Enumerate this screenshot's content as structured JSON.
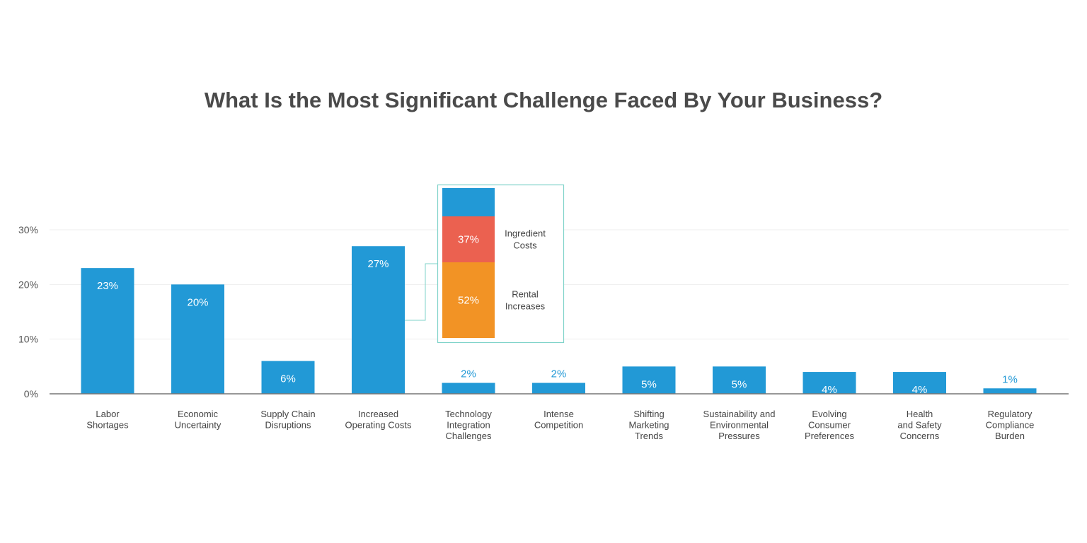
{
  "chart_data": {
    "type": "bar",
    "title": "What Is the Most Significant Challenge Faced By Your Business?",
    "categories": [
      [
        "Labor",
        "Shortages"
      ],
      [
        "Economic",
        "Uncertainty"
      ],
      [
        "Supply Chain",
        "Disruptions"
      ],
      [
        "Increased",
        "Operating Costs"
      ],
      [
        "Technology",
        "Integration",
        "Challenges"
      ],
      [
        "Intense",
        "Competition"
      ],
      [
        "Shifting",
        "Marketing",
        "Trends"
      ],
      [
        "Sustainability and",
        "Environmental",
        "Pressures"
      ],
      [
        "Evolving",
        "Consumer",
        "Preferences"
      ],
      [
        "Health",
        "and Safety",
        "Concerns"
      ],
      [
        "Regulatory",
        "Compliance",
        "Burden"
      ]
    ],
    "values": [
      23,
      20,
      6,
      27,
      2,
      2,
      5,
      5,
      4,
      4,
      1
    ],
    "value_labels": [
      "23%",
      "20%",
      "6%",
      "27%",
      "2%",
      "2%",
      "5%",
      "5%",
      "4%",
      "4%",
      "1%"
    ],
    "ylim": [
      0,
      30
    ],
    "yticks": [
      "0%",
      "10%",
      "20%",
      "30%"
    ],
    "ytick_values": [
      0,
      10,
      20,
      30
    ],
    "grid": true,
    "bar_color": "#2299d6",
    "breakdown": {
      "parent_category": "Increased Operating Costs",
      "segments": [
        {
          "name": "Rental Increases",
          "value": 52,
          "label": "52%",
          "color": "#f29325"
        },
        {
          "name": "Ingredient Costs",
          "value": 37,
          "label": "37%",
          "color": "#eb6150"
        },
        {
          "name": "",
          "value": 11,
          "label": "",
          "color": "#2299d6"
        }
      ],
      "box_color": "#7fd3c9"
    }
  }
}
